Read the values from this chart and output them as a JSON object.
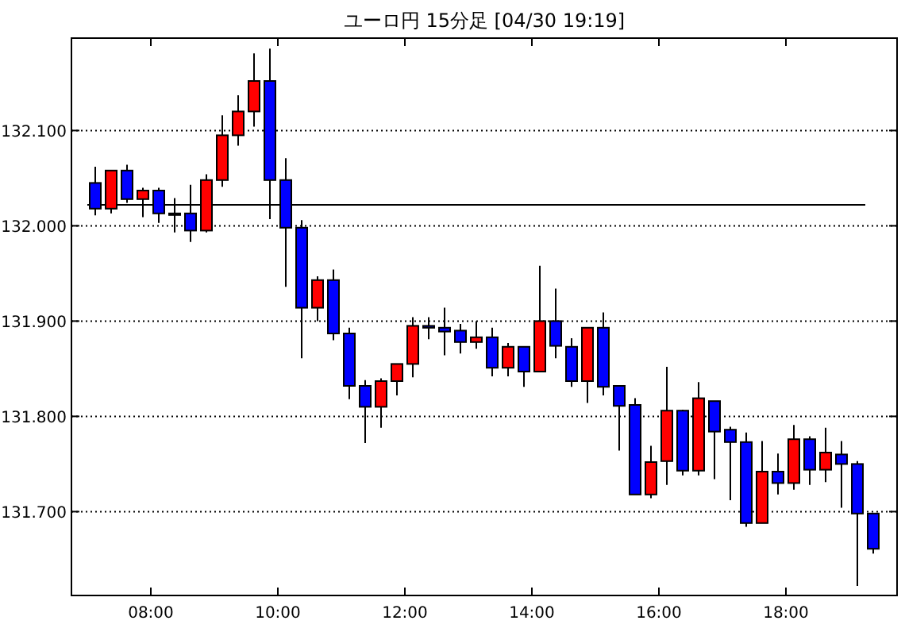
{
  "chart_data": {
    "type": "candlestick",
    "title": "ユーロ円 15分足 [04/30 19:19]",
    "x": [
      7.125,
      7.375,
      7.625,
      7.875,
      8.125,
      8.375,
      8.625,
      8.875,
      9.125,
      9.375,
      9.625,
      9.875,
      10.125,
      10.375,
      10.625,
      10.875,
      11.125,
      11.375,
      11.625,
      11.875,
      12.125,
      12.375,
      12.625,
      12.875,
      13.125,
      13.375,
      13.625,
      13.875,
      14.125,
      14.375,
      14.625,
      14.875,
      15.125,
      15.375,
      15.625,
      15.875,
      16.125,
      16.375,
      16.625,
      16.875,
      17.125,
      17.375,
      17.625,
      17.875,
      18.125,
      18.375,
      18.625,
      18.875,
      19.125,
      19.375
    ],
    "ohlc": [
      [
        132.045,
        132.062,
        132.011,
        132.018
      ],
      [
        132.018,
        132.058,
        132.013,
        132.058
      ],
      [
        132.058,
        132.064,
        132.024,
        132.028
      ],
      [
        132.028,
        132.04,
        132.009,
        132.037
      ],
      [
        132.037,
        132.04,
        132.003,
        132.013
      ],
      [
        132.013,
        132.029,
        131.993,
        132.013
      ],
      [
        132.013,
        132.043,
        131.983,
        131.995
      ],
      [
        131.995,
        132.054,
        131.993,
        132.048
      ],
      [
        132.048,
        132.116,
        132.041,
        132.095
      ],
      [
        132.095,
        132.137,
        132.084,
        132.12
      ],
      [
        132.12,
        132.181,
        132.104,
        132.152
      ],
      [
        132.152,
        132.186,
        132.007,
        132.048
      ],
      [
        132.048,
        132.071,
        131.936,
        131.998
      ],
      [
        131.998,
        132.006,
        131.861,
        131.914
      ],
      [
        131.914,
        131.947,
        131.9,
        131.943
      ],
      [
        131.943,
        131.954,
        131.88,
        131.887
      ],
      [
        131.887,
        131.893,
        131.818,
        131.832
      ],
      [
        131.832,
        131.838,
        131.772,
        131.81
      ],
      [
        131.81,
        131.84,
        131.788,
        131.837
      ],
      [
        131.837,
        131.855,
        131.822,
        131.855
      ],
      [
        131.855,
        131.904,
        131.841,
        131.895
      ],
      [
        131.895,
        131.904,
        131.881,
        131.893
      ],
      [
        131.893,
        131.914,
        131.864,
        131.889
      ],
      [
        131.89,
        131.897,
        131.866,
        131.878
      ],
      [
        131.878,
        131.9,
        131.871,
        131.883
      ],
      [
        131.883,
        131.893,
        131.842,
        131.851
      ],
      [
        131.851,
        131.877,
        131.842,
        131.873
      ],
      [
        131.873,
        131.873,
        131.831,
        131.847
      ],
      [
        131.847,
        131.958,
        131.847,
        131.9
      ],
      [
        131.9,
        131.934,
        131.861,
        131.874
      ],
      [
        131.873,
        131.882,
        131.831,
        131.837
      ],
      [
        131.837,
        131.893,
        131.814,
        131.893
      ],
      [
        131.893,
        131.909,
        131.822,
        131.831
      ],
      [
        131.832,
        131.832,
        131.764,
        131.811
      ],
      [
        131.812,
        131.819,
        131.718,
        131.718
      ],
      [
        131.718,
        131.769,
        131.714,
        131.752
      ],
      [
        131.753,
        131.852,
        131.728,
        131.806
      ],
      [
        131.806,
        131.807,
        131.738,
        131.743
      ],
      [
        131.743,
        131.836,
        131.738,
        131.819
      ],
      [
        131.816,
        131.816,
        131.734,
        131.784
      ],
      [
        131.786,
        131.789,
        131.712,
        131.773
      ],
      [
        131.773,
        131.783,
        131.684,
        131.688
      ],
      [
        131.688,
        131.774,
        131.688,
        131.742
      ],
      [
        131.742,
        131.761,
        131.718,
        131.73
      ],
      [
        131.73,
        131.791,
        131.723,
        131.776
      ],
      [
        131.776,
        131.779,
        131.728,
        131.744
      ],
      [
        131.744,
        131.788,
        131.731,
        131.762
      ],
      [
        131.76,
        131.774,
        131.704,
        131.75
      ],
      [
        131.75,
        131.753,
        131.622,
        131.698
      ],
      [
        131.698,
        131.698,
        131.656,
        131.661
      ]
    ],
    "colors": [
      "#0000ff",
      "#ff0000",
      "#0000ff",
      "#ff0000",
      "#0000ff",
      "#000000",
      "#0000ff",
      "#ff0000",
      "#ff0000",
      "#ff0000",
      "#ff0000",
      "#0000ff",
      "#0000ff",
      "#0000ff",
      "#ff0000",
      "#0000ff",
      "#0000ff",
      "#0000ff",
      "#ff0000",
      "#ff0000",
      "#ff0000",
      "#0000ff",
      "#0000ff",
      "#0000ff",
      "#ff0000",
      "#0000ff",
      "#ff0000",
      "#0000ff",
      "#ff0000",
      "#0000ff",
      "#0000ff",
      "#ff0000",
      "#0000ff",
      "#0000ff",
      "#0000ff",
      "#ff0000",
      "#ff0000",
      "#0000ff",
      "#ff0000",
      "#0000ff",
      "#0000ff",
      "#0000ff",
      "#ff0000",
      "#0000ff",
      "#ff0000",
      "#0000ff",
      "#ff0000",
      "#0000ff",
      "#0000ff",
      "#0000ff"
    ],
    "xlim": [
      6.75,
      19.75
    ],
    "xticks": [
      {
        "value": 8,
        "label": "08:00"
      },
      {
        "value": 10,
        "label": "10:00"
      },
      {
        "value": 12,
        "label": "12:00"
      },
      {
        "value": 14,
        "label": "14:00"
      },
      {
        "value": 16,
        "label": "16:00"
      },
      {
        "value": 18,
        "label": "18:00"
      }
    ],
    "ylim": [
      131.612,
      132.197
    ],
    "yticks": [
      {
        "value": 131.7,
        "label": "131.700"
      },
      {
        "value": 131.8,
        "label": "131.800"
      },
      {
        "value": 131.9,
        "label": "131.900"
      },
      {
        "value": 132.0,
        "label": "132.000"
      },
      {
        "value": 132.1,
        "label": "132.100"
      }
    ],
    "grid": "y",
    "ref_lines": [
      {
        "axis": "y",
        "value": 132.022
      }
    ]
  }
}
